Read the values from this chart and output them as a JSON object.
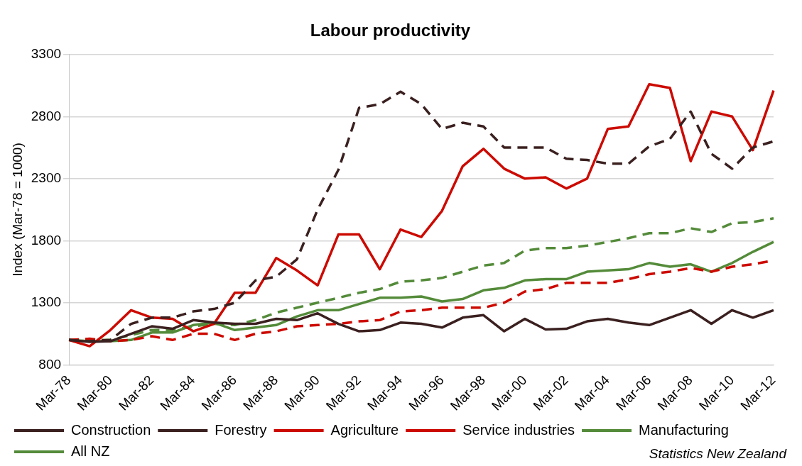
{
  "chart_data": {
    "type": "line",
    "title": "Labour productivity",
    "ylabel": "Index (Mar-78 = 1000)",
    "categories": [
      "Mar-78",
      null,
      "Mar-80",
      null,
      "Mar-82",
      null,
      "Mar-84",
      null,
      "Mar-86",
      null,
      "Mar-88",
      null,
      "Mar-90",
      null,
      "Mar-92",
      null,
      "Mar-94",
      null,
      "Mar-96",
      null,
      "Mar-98",
      null,
      "Mar-00",
      null,
      "Mar-02",
      null,
      "Mar-04",
      null,
      "Mar-06",
      null,
      "Mar-08",
      null,
      "Mar-10",
      null,
      "Mar-12"
    ],
    "series": [
      {
        "name": "Construction",
        "color": "#3b2020",
        "line_style": "solid",
        "values": [
          1000,
          985,
          990,
          1050,
          1110,
          1090,
          1160,
          1140,
          1130,
          1130,
          1170,
          1160,
          1215,
          1130,
          1070,
          1080,
          1140,
          1130,
          1100,
          1180,
          1200,
          1070,
          1170,
          1085,
          1090,
          1150,
          1170,
          1140,
          1120,
          1180,
          1240,
          1130,
          1240,
          1180,
          1240
        ]
      },
      {
        "name": "Forestry",
        "color": "#3b2020",
        "line_style": "dashed",
        "values": [
          1000,
          990,
          1000,
          1130,
          1180,
          1180,
          1230,
          1250,
          1300,
          1480,
          1510,
          1650,
          2050,
          2370,
          2870,
          2900,
          3000,
          2900,
          2700,
          2750,
          2720,
          2550,
          2550,
          2550,
          2460,
          2450,
          2420,
          2420,
          2560,
          2620,
          2840,
          2500,
          2380,
          2550,
          2600
        ]
      },
      {
        "name": "Agriculture",
        "color": "#cc0a00",
        "line_style": "solid",
        "values": [
          1000,
          950,
          1080,
          1240,
          1180,
          1170,
          1070,
          1130,
          1380,
          1380,
          1660,
          1560,
          1440,
          1850,
          1850,
          1570,
          1890,
          1830,
          2040,
          2400,
          2540,
          2380,
          2300,
          2310,
          2220,
          2300,
          2700,
          2720,
          3060,
          3030,
          2440,
          2840,
          2800,
          2530,
          3010
        ]
      },
      {
        "name": "Service industries",
        "color": "#cc0a00",
        "line_style": "dashed",
        "values": [
          1000,
          1010,
          990,
          1000,
          1030,
          1000,
          1050,
          1050,
          1000,
          1050,
          1070,
          1110,
          1120,
          1130,
          1150,
          1160,
          1230,
          1240,
          1260,
          1260,
          1260,
          1300,
          1390,
          1410,
          1460,
          1460,
          1460,
          1490,
          1530,
          1550,
          1580,
          1550,
          1590,
          1610,
          1640
        ]
      },
      {
        "name": "Manufacturing",
        "color": "#548b3a",
        "line_style": "solid",
        "values": [
          1000,
          990,
          990,
          1000,
          1060,
          1060,
          1120,
          1140,
          1080,
          1100,
          1120,
          1190,
          1240,
          1240,
          1290,
          1340,
          1340,
          1350,
          1310,
          1330,
          1400,
          1420,
          1480,
          1490,
          1490,
          1550,
          1560,
          1570,
          1620,
          1590,
          1610,
          1550,
          1620,
          1710,
          1790
        ]
      },
      {
        "name": "All NZ",
        "color": "#548b3a",
        "line_style": "dashed",
        "values": [
          1000,
          1000,
          1000,
          1040,
          1080,
          1080,
          1110,
          1130,
          1120,
          1160,
          1220,
          1260,
          1300,
          1340,
          1380,
          1410,
          1470,
          1480,
          1500,
          1550,
          1600,
          1620,
          1720,
          1740,
          1740,
          1760,
          1790,
          1820,
          1860,
          1860,
          1900,
          1870,
          1940,
          1950,
          1980
        ]
      }
    ],
    "ylim": [
      800,
      3300
    ],
    "yticks": [
      800,
      1300,
      1800,
      2300,
      2800,
      3300
    ],
    "grid": "y",
    "legend": "bottom",
    "marker": "none",
    "annotations": [
      "Statistics New Zealand"
    ]
  }
}
